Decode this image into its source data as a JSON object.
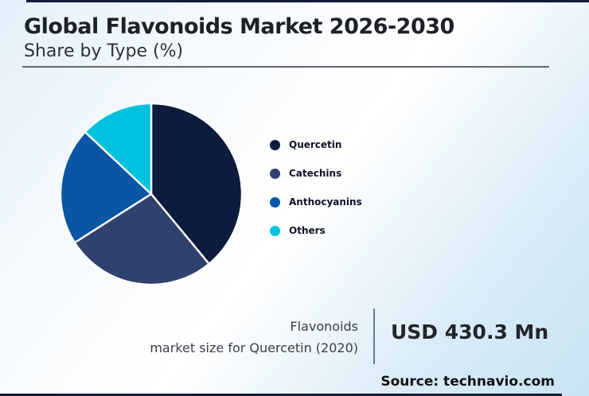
{
  "page": {
    "title": "Global Flavonoids Market 2026-2030",
    "subtitle": "Share by Type (%)"
  },
  "chart_data": {
    "type": "pie",
    "title": "Global Flavonoids Market 2026-2030",
    "subtitle": "Share by Type (%)",
    "unit": "%",
    "series": [
      {
        "name": "Quercetin",
        "value": 39,
        "color": "#0d1b3d"
      },
      {
        "name": "Catechins",
        "value": 27,
        "color": "#2f416e"
      },
      {
        "name": "Anthocyanins",
        "value": 21,
        "color": "#0b55a5"
      },
      {
        "name": "Others",
        "value": 13,
        "color": "#00c1e0"
      }
    ],
    "start_angle_deg": 0,
    "direction": "clockwise",
    "legend_position": "right",
    "data_labels_shown": false,
    "slice_separator_color": "#ffffff"
  },
  "stat": {
    "label_line1": "Flavonoids",
    "label_line2": "market size for Quercetin (2020)",
    "value": "USD 430.3 Mn"
  },
  "source": {
    "text": "Source: technavio.com"
  },
  "colors": {
    "accent_bar": "#101c3a",
    "title_rule": "#63676c",
    "stat_divider": "#5e7b91"
  }
}
